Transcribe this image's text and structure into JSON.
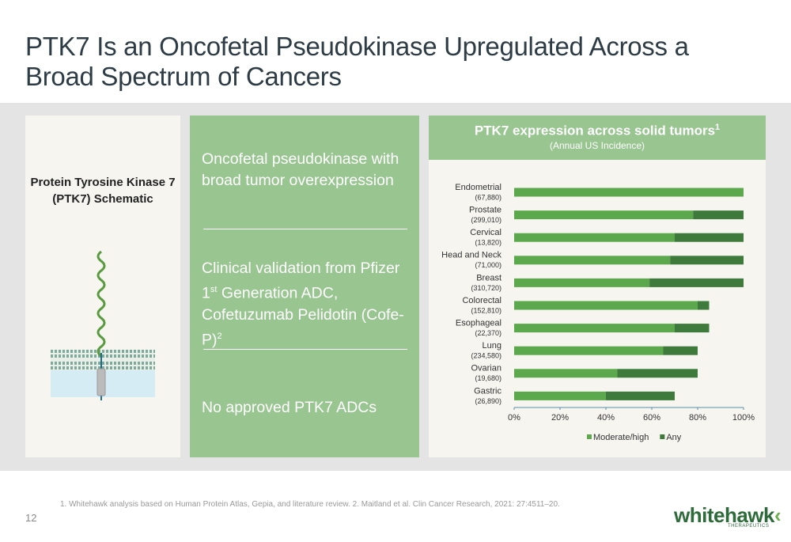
{
  "header": {
    "title": "PTK7 Is an Oncofetal Pseudokinase Upregulated Across a Broad Spectrum of Cancers"
  },
  "schematic": {
    "title": "Protein Tyrosine Kinase 7 (PTK7) Schematic"
  },
  "points": [
    {
      "text": "Oncofetal pseudokinase with broad tumor overexpression"
    },
    {
      "parts": [
        "Clinical validation from Pfizer 1",
        "st",
        " Generation ADC, Cofetuzumab Pelidotin (Cofe-P)",
        "2"
      ]
    },
    {
      "text": "No approved PTK7 ADCs"
    }
  ],
  "chart_data": {
    "type": "bar",
    "orientation": "horizontal",
    "stacked": true,
    "title": "PTK7 expression across solid tumors",
    "title_sup": "1",
    "subtitle": "(Annual US Incidence)",
    "categories": [
      "Endometrial",
      "Prostate",
      "Cervical",
      "Head and Neck",
      "Breast",
      "Colorectal",
      "Esophageal",
      "Lung",
      "Ovarian",
      "Gastric"
    ],
    "category_notes": [
      "(67,880)",
      "(299,010)",
      "(13,820)",
      "(71,000)",
      "(310,720)",
      "(152,810)",
      "(22,370)",
      "(234,580)",
      "(19,680)",
      "(26,890)"
    ],
    "series": [
      {
        "name": "Moderate/high",
        "color": "#5ca84c",
        "values": [
          100,
          78,
          70,
          68,
          59,
          80,
          70,
          65,
          45,
          40
        ]
      },
      {
        "name": "Any",
        "color": "#3e7a3b",
        "values": [
          0,
          22,
          30,
          32,
          41,
          5,
          15,
          15,
          35,
          30
        ]
      }
    ],
    "xlim": [
      0,
      100
    ],
    "xticks": [
      {
        "value": 0,
        "label": "0%"
      },
      {
        "value": 20,
        "label": "20%"
      },
      {
        "value": 40,
        "label": "40%"
      },
      {
        "value": 60,
        "label": "60%"
      },
      {
        "value": 80,
        "label": "80%"
      },
      {
        "value": 100,
        "label": "100%"
      }
    ],
    "legend": "bottom"
  },
  "footer": {
    "page_number": "12",
    "footnote": "1. Whitehawk analysis based on Human Protein Atlas, Gepia, and literature review. 2. Maitland et al. Clin Cancer Research, 2021: 27:4511–20.",
    "logo": "whitehawk",
    "tagline": "THERAPEUTICS"
  }
}
